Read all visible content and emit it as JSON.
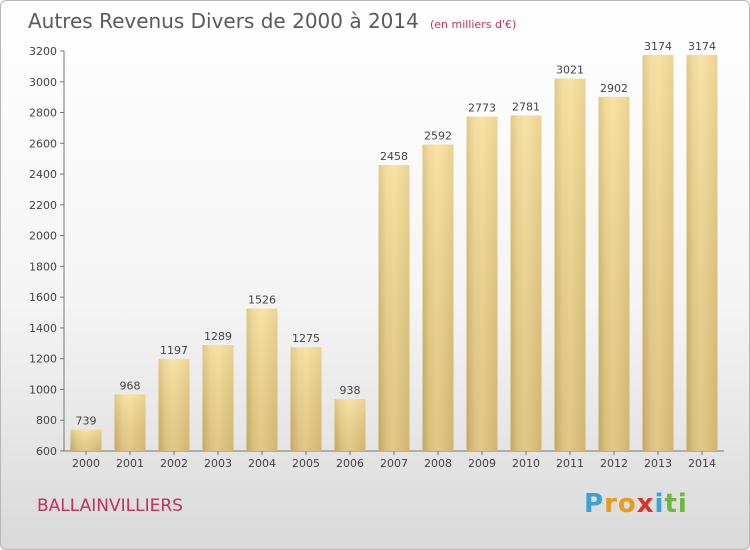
{
  "header": {
    "title": "Autres Revenus Divers de 2000 à 2014",
    "subtitle": "(en milliers d'€)"
  },
  "footer": {
    "place": "BALLAINVILLIERS",
    "logo_letters": [
      {
        "ch": "P",
        "color": "#3aa0d8"
      },
      {
        "ch": "r",
        "color": "#e89a1c"
      },
      {
        "ch": "o",
        "color": "#e89a1c"
      },
      {
        "ch": "x",
        "color": "#d8342c"
      },
      {
        "ch": "i",
        "color": "#3aa0d8"
      },
      {
        "ch": "t",
        "color": "#6cb83a"
      },
      {
        "ch": "i",
        "color": "#6cb83a"
      }
    ]
  },
  "chart_data": {
    "type": "bar",
    "title": "Autres Revenus Divers de 2000 à 2014",
    "subtitle": "(en milliers d'€)",
    "categories": [
      "2000",
      "2001",
      "2002",
      "2003",
      "2004",
      "2005",
      "2006",
      "2007",
      "2008",
      "2009",
      "2010",
      "2011",
      "2012",
      "2013",
      "2014"
    ],
    "values": [
      739,
      968,
      1197,
      1289,
      1526,
      1275,
      938,
      2458,
      2592,
      2773,
      2781,
      3021,
      2902,
      3174,
      3174
    ],
    "ylim": [
      600,
      3200
    ],
    "yticks": [
      600,
      800,
      1000,
      1200,
      1400,
      1600,
      1800,
      2000,
      2200,
      2400,
      2600,
      2800,
      3000,
      3200
    ],
    "grid": false,
    "bar_color_light": "#f7dfa0",
    "bar_color_dark": "#c8ae6a"
  }
}
